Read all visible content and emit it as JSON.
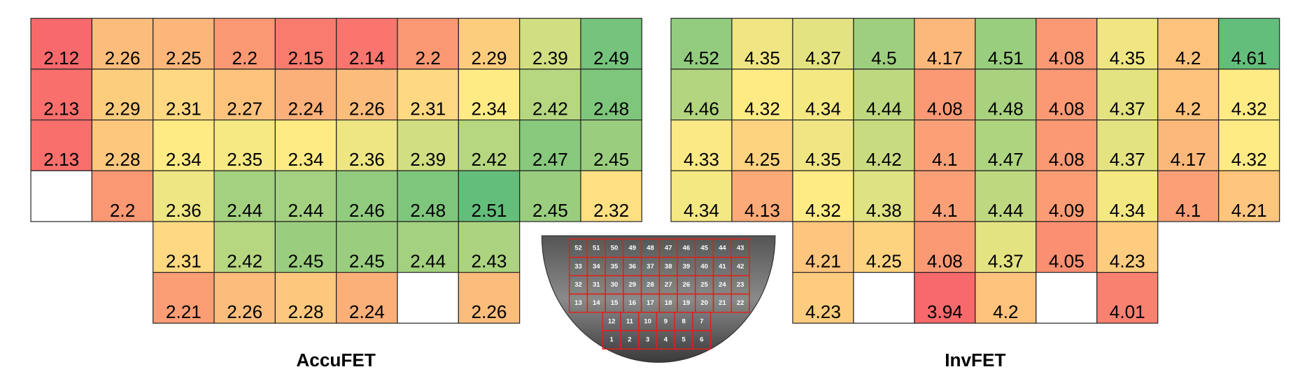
{
  "accufet": {
    "label": "AccuFET",
    "rows": [
      [
        2.12,
        2.26,
        2.25,
        2.2,
        2.15,
        2.14,
        2.2,
        2.29,
        2.39,
        2.49
      ],
      [
        2.13,
        2.29,
        2.31,
        2.27,
        2.24,
        2.26,
        2.31,
        2.34,
        2.42,
        2.48
      ],
      [
        2.13,
        2.28,
        2.34,
        2.35,
        2.34,
        2.36,
        2.39,
        2.42,
        2.47,
        2.45
      ],
      [
        null,
        2.2,
        2.36,
        2.44,
        2.44,
        2.46,
        2.48,
        2.51,
        2.45,
        2.32
      ],
      [
        2.31,
        2.42,
        2.45,
        2.45,
        2.44,
        2.43
      ],
      [
        2.21,
        2.26,
        2.28,
        2.24,
        null,
        2.26
      ]
    ]
  },
  "invfet": {
    "label": "InvFET",
    "rows": [
      [
        4.52,
        4.35,
        4.37,
        4.5,
        4.17,
        4.51,
        4.08,
        4.35,
        4.2,
        4.61
      ],
      [
        4.46,
        4.32,
        4.34,
        4.44,
        4.08,
        4.48,
        4.08,
        4.37,
        4.2,
        4.32
      ],
      [
        4.33,
        4.25,
        4.35,
        4.42,
        4.1,
        4.47,
        4.08,
        4.37,
        4.17,
        4.32
      ],
      [
        4.34,
        4.13,
        4.32,
        4.38,
        4.1,
        4.44,
        4.09,
        4.34,
        4.1,
        4.21
      ],
      [
        4.21,
        4.25,
        4.08,
        4.37,
        4.05,
        4.23
      ],
      [
        4.23,
        null,
        3.94,
        4.2,
        null,
        4.01
      ]
    ]
  },
  "wafer": {
    "rows": [
      [
        52,
        51,
        50,
        49,
        48,
        47,
        46,
        45,
        44,
        43
      ],
      [
        33,
        34,
        35,
        36,
        37,
        38,
        39,
        40,
        41,
        42
      ],
      [
        32,
        31,
        30,
        29,
        28,
        27,
        26,
        25,
        24,
        23
      ],
      [
        13,
        14,
        15,
        16,
        17,
        18,
        19,
        20,
        21,
        22
      ],
      [
        12,
        11,
        10,
        9,
        8,
        7
      ],
      [
        1,
        2,
        3,
        4,
        5,
        6
      ]
    ]
  }
}
